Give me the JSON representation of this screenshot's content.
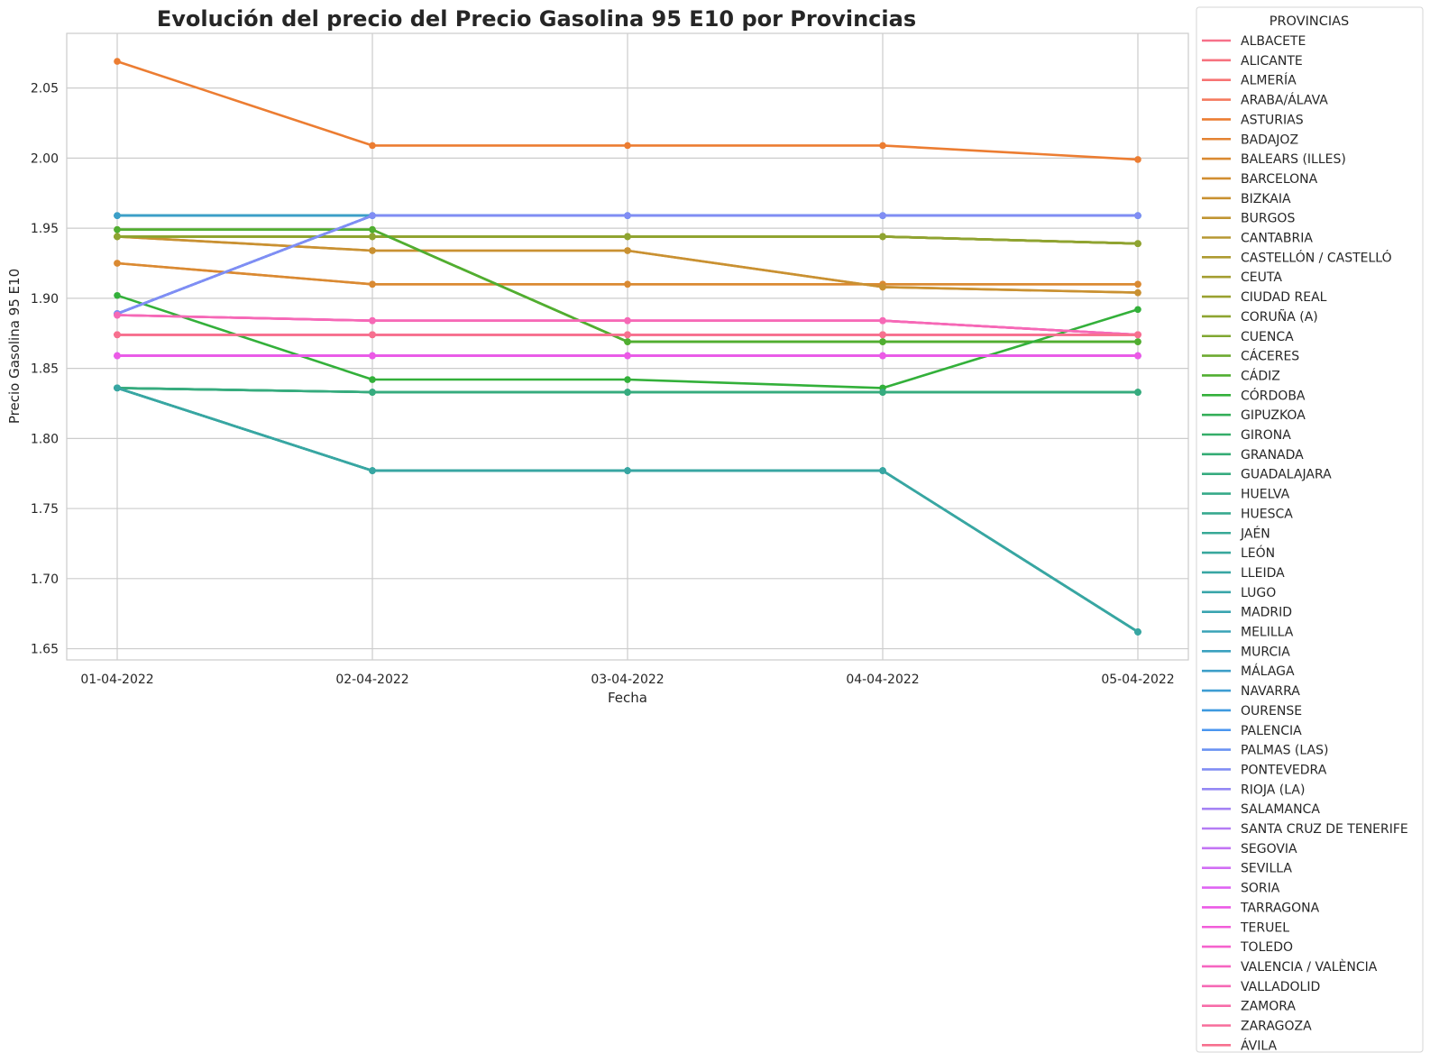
{
  "chart_data": {
    "type": "line",
    "title": "Evolución del precio del Precio Gasolina 95 E10 por Provincias",
    "xlabel": "Fecha",
    "ylabel": "Precio Gasolina 95 E10",
    "x": [
      "01-04-2022",
      "02-04-2022",
      "03-04-2022",
      "04-04-2022",
      "05-04-2022"
    ],
    "ylim": [
      1.642,
      2.089
    ],
    "yticks": [
      "1.65",
      "1.70",
      "1.75",
      "1.80",
      "1.85",
      "1.90",
      "1.95",
      "2.00",
      "2.05"
    ],
    "grid": true,
    "markers": true,
    "legend": {
      "title": "PROVINCIAS",
      "placement": "outside-right"
    },
    "series": [
      {
        "name": "ALBACETE",
        "color": "#f77189",
        "values": [
          1.874,
          1.874,
          1.874,
          1.874,
          1.874
        ]
      },
      {
        "name": "ALICANTE",
        "color": "#f7737f",
        "values": [
          1.874,
          1.874,
          1.874,
          1.874,
          1.874
        ]
      },
      {
        "name": "ALMERÍA",
        "color": "#f77473",
        "values": [
          1.874,
          1.874,
          1.874,
          1.874,
          1.874
        ]
      },
      {
        "name": "ARABA/ÁLAVA",
        "color": "#f57a5e",
        "values": [
          1.874,
          1.874,
          1.874,
          1.874,
          1.874
        ]
      },
      {
        "name": "ASTURIAS",
        "color": "#ec7d32",
        "values": [
          2.069,
          2.009,
          2.009,
          2.009,
          1.999
        ]
      },
      {
        "name": "BADAJOZ",
        "color": "#e48333",
        "values": [
          1.925,
          1.91,
          1.91,
          1.91,
          1.91
        ]
      },
      {
        "name": "BALEARS (ILLES)",
        "color": "#da8a32",
        "values": [
          1.925,
          1.91,
          1.91,
          1.91,
          1.91
        ]
      },
      {
        "name": "BARCELONA",
        "color": "#d18e32",
        "values": [
          1.944,
          1.934,
          1.934,
          1.908,
          1.904
        ]
      },
      {
        "name": "BIZKAIA",
        "color": "#c99132",
        "values": [
          1.944,
          1.934,
          1.934,
          1.908,
          1.904
        ]
      },
      {
        "name": "BURGOS",
        "color": "#c09532",
        "values": [
          1.944,
          1.944,
          1.944,
          1.944,
          1.939
        ]
      },
      {
        "name": "CANTABRIA",
        "color": "#b79832",
        "values": [
          1.944,
          1.944,
          1.944,
          1.944,
          1.939
        ]
      },
      {
        "name": "CASTELLÓN / CASTELLÓ",
        "color": "#ae9b31",
        "values": [
          1.944,
          1.944,
          1.944,
          1.944,
          1.939
        ]
      },
      {
        "name": "CEUTA",
        "color": "#a49e31",
        "values": [
          1.944,
          1.944,
          1.944,
          1.944,
          1.939
        ]
      },
      {
        "name": "CIUDAD REAL",
        "color": "#9aa131",
        "values": [
          1.944,
          1.944,
          1.944,
          1.944,
          1.939
        ]
      },
      {
        "name": "CORUÑA (A)",
        "color": "#8ea431",
        "values": [
          1.944,
          1.944,
          1.944,
          1.944,
          1.939
        ]
      },
      {
        "name": "CUENCA",
        "color": "#80a731",
        "values": [
          1.949,
          1.949,
          1.869,
          1.869,
          1.869
        ]
      },
      {
        "name": "CÁCERES",
        "color": "#6daa31",
        "values": [
          1.949,
          1.949,
          1.869,
          1.869,
          1.869
        ]
      },
      {
        "name": "CÁDIZ",
        "color": "#50ae31",
        "values": [
          1.949,
          1.949,
          1.869,
          1.869,
          1.869
        ]
      },
      {
        "name": "CÓRDOBA",
        "color": "#33b03a",
        "values": [
          1.902,
          1.842,
          1.842,
          1.836,
          1.892
        ]
      },
      {
        "name": "GIPUZKOA",
        "color": "#34ae58",
        "values": [
          1.836,
          1.833,
          1.833,
          1.833,
          1.833
        ]
      },
      {
        "name": "GIRONA",
        "color": "#35ad69",
        "values": [
          1.836,
          1.833,
          1.833,
          1.833,
          1.833
        ]
      },
      {
        "name": "GRANADA",
        "color": "#35ac75",
        "values": [
          1.836,
          1.833,
          1.833,
          1.833,
          1.833
        ]
      },
      {
        "name": "GUADALAJARA",
        "color": "#36ab7f",
        "values": [
          1.836,
          1.833,
          1.833,
          1.833,
          1.833
        ]
      },
      {
        "name": "HUELVA",
        "color": "#36aa88",
        "values": [
          1.836,
          1.777,
          1.777,
          1.777,
          1.662
        ]
      },
      {
        "name": "HUESCA",
        "color": "#37a98f",
        "values": [
          1.836,
          1.777,
          1.777,
          1.777,
          1.662
        ]
      },
      {
        "name": "JAÉN",
        "color": "#37a896",
        "values": [
          1.836,
          1.777,
          1.777,
          1.777,
          1.662
        ]
      },
      {
        "name": "LEÓN",
        "color": "#38a79d",
        "values": [
          1.836,
          1.777,
          1.777,
          1.777,
          1.662
        ]
      },
      {
        "name": "LLEIDA",
        "color": "#38a6a3",
        "values": [
          1.836,
          1.777,
          1.777,
          1.777,
          1.662
        ]
      },
      {
        "name": "LUGO",
        "color": "#39a5a9",
        "values": [
          1.959,
          1.959,
          1.959,
          1.959,
          1.959
        ]
      },
      {
        "name": "MADRID",
        "color": "#39a4b0",
        "values": [
          1.959,
          1.959,
          1.959,
          1.959,
          1.959
        ]
      },
      {
        "name": "MELILLA",
        "color": "#3aa3b7",
        "values": [
          1.959,
          1.959,
          1.959,
          1.959,
          1.959
        ]
      },
      {
        "name": "MURCIA",
        "color": "#3ba1bf",
        "values": [
          1.959,
          1.959,
          1.959,
          1.959,
          1.959
        ]
      },
      {
        "name": "MÁLAGA",
        "color": "#3c9fc8",
        "values": [
          1.959,
          1.959,
          1.959,
          1.959,
          1.959
        ]
      },
      {
        "name": "NAVARRA",
        "color": "#3d9dd3",
        "values": [
          1.889,
          1.959,
          1.959,
          1.959,
          1.959
        ]
      },
      {
        "name": "OURENSE",
        "color": "#3e9ae0",
        "values": [
          1.889,
          1.959,
          1.959,
          1.959,
          1.959
        ]
      },
      {
        "name": "PALENCIA",
        "color": "#4a96f0",
        "values": [
          1.889,
          1.959,
          1.959,
          1.959,
          1.959
        ]
      },
      {
        "name": "PALMAS (LAS)",
        "color": "#6a92f3",
        "values": [
          1.889,
          1.959,
          1.959,
          1.959,
          1.959
        ]
      },
      {
        "name": "PONTEVEDRA",
        "color": "#818df4",
        "values": [
          1.889,
          1.959,
          1.959,
          1.959,
          1.959
        ]
      },
      {
        "name": "RIOJA (LA)",
        "color": "#9488f4",
        "values": [
          1.859,
          1.859,
          1.859,
          1.859,
          1.859
        ]
      },
      {
        "name": "SALAMANCA",
        "color": "#a582f4",
        "values": [
          1.859,
          1.859,
          1.859,
          1.859,
          1.859
        ]
      },
      {
        "name": "SANTA CRUZ DE TENERIFE",
        "color": "#b47cf4",
        "values": [
          1.859,
          1.859,
          1.859,
          1.859,
          1.859
        ]
      },
      {
        "name": "SEGOVIA",
        "color": "#c375f4",
        "values": [
          1.859,
          1.859,
          1.859,
          1.859,
          1.859
        ]
      },
      {
        "name": "SEVILLA",
        "color": "#d16ef4",
        "values": [
          1.859,
          1.859,
          1.859,
          1.859,
          1.859
        ]
      },
      {
        "name": "SORIA",
        "color": "#df64f3",
        "values": [
          1.859,
          1.859,
          1.859,
          1.859,
          1.859
        ]
      },
      {
        "name": "TARRAGONA",
        "color": "#ec5ae6",
        "values": [
          1.859,
          1.859,
          1.859,
          1.859,
          1.859
        ]
      },
      {
        "name": "TERUEL",
        "color": "#f25dd9",
        "values": [
          1.888,
          1.884,
          1.884,
          1.884,
          1.874
        ]
      },
      {
        "name": "TOLEDO",
        "color": "#f562cd",
        "values": [
          1.888,
          1.884,
          1.884,
          1.884,
          1.874
        ]
      },
      {
        "name": "VALENCIA / VALÈNCIA",
        "color": "#f666c1",
        "values": [
          1.888,
          1.884,
          1.884,
          1.884,
          1.874
        ]
      },
      {
        "name": "VALLADOLID",
        "color": "#f669b5",
        "values": [
          1.888,
          1.884,
          1.884,
          1.884,
          1.874
        ]
      },
      {
        "name": "ZAMORA",
        "color": "#f76ca9",
        "values": [
          1.874,
          1.874,
          1.874,
          1.874,
          1.874
        ]
      },
      {
        "name": "ZARAGOZA",
        "color": "#f76e9c",
        "values": [
          1.874,
          1.874,
          1.874,
          1.874,
          1.874
        ]
      },
      {
        "name": "ÁVILA",
        "color": "#f7708f",
        "values": [
          1.874,
          1.874,
          1.874,
          1.874,
          1.874
        ]
      }
    ]
  }
}
